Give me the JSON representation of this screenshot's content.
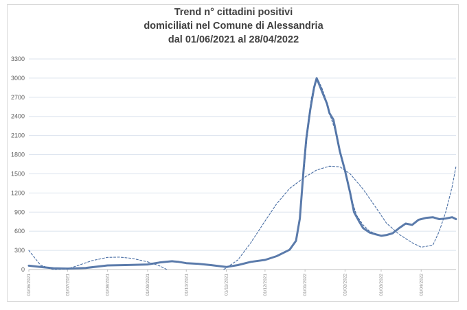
{
  "chart_data": {
    "type": "line",
    "title_lines": [
      "Trend n° cittadini positivi",
      "domiciliati nel Comune di Alessandria",
      "dal 01/06/2021 al 28/04/2022"
    ],
    "xlabel": "",
    "ylabel": "",
    "ylim": [
      0,
      3300
    ],
    "yticks": [
      "0",
      "300",
      "600",
      "900",
      "1200",
      "1500",
      "1800",
      "2100",
      "2400",
      "2700",
      "3000",
      "3300"
    ],
    "xlim": [
      "2021-06-01",
      "2022-04-28"
    ],
    "xticks": [
      "01/06/2021",
      "01/07/2021",
      "01/08/2021",
      "01/09/2021",
      "01/10/2021",
      "01/11/2021",
      "01/12/2021",
      "01/01/2022",
      "01/02/2022",
      "01/03/2022",
      "01/04/2022"
    ],
    "grid": true,
    "legend": "none",
    "colors": {
      "series": "#5b7bab",
      "trend": "#4a6fa5",
      "grid": "#dbe3ee",
      "axis": "#bfbfbf"
    },
    "series": [
      {
        "style": "solid",
        "x": [
          "2021-06-01",
          "2021-06-10",
          "2021-06-20",
          "2021-07-01",
          "2021-07-15",
          "2021-08-01",
          "2021-08-15",
          "2021-09-01",
          "2021-09-10",
          "2021-09-15",
          "2021-09-20",
          "2021-09-25",
          "2021-10-01",
          "2021-10-10",
          "2021-10-20",
          "2021-11-01",
          "2021-11-10",
          "2021-11-20",
          "2021-12-01",
          "2021-12-10",
          "2021-12-20",
          "2021-12-25",
          "2021-12-28",
          "2021-12-31",
          "2022-01-02",
          "2022-01-05",
          "2022-01-08",
          "2022-01-10",
          "2022-01-12",
          "2022-01-15",
          "2022-01-18",
          "2022-01-20",
          "2022-01-23",
          "2022-01-26",
          "2022-01-28",
          "2022-02-01",
          "2022-02-05",
          "2022-02-08",
          "2022-02-12",
          "2022-02-15",
          "2022-02-20",
          "2022-02-25",
          "2022-03-01",
          "2022-03-05",
          "2022-03-10",
          "2022-03-15",
          "2022-03-20",
          "2022-03-25",
          "2022-03-30",
          "2022-04-01",
          "2022-04-05",
          "2022-04-10",
          "2022-04-15",
          "2022-04-20",
          "2022-04-25",
          "2022-04-28"
        ],
        "y": [
          60,
          40,
          20,
          15,
          25,
          65,
          70,
          80,
          110,
          120,
          130,
          120,
          100,
          90,
          70,
          40,
          70,
          120,
          150,
          210,
          310,
          450,
          800,
          1600,
          2050,
          2500,
          2850,
          3000,
          2900,
          2750,
          2600,
          2450,
          2350,
          2050,
          1850,
          1550,
          1200,
          900,
          750,
          650,
          580,
          550,
          530,
          540,
          570,
          650,
          720,
          700,
          780,
          790,
          810,
          820,
          790,
          800,
          820,
          790
        ]
      },
      {
        "style": "dashed",
        "x": [
          "2021-06-01",
          "2021-06-10",
          "2021-06-20",
          "2021-07-01",
          "2021-07-10",
          "2021-07-20",
          "2021-08-01",
          "2021-08-10",
          "2021-08-20",
          "2021-09-01",
          "2021-09-10",
          "2021-09-16"
        ],
        "y": [
          300,
          70,
          0,
          10,
          70,
          140,
          190,
          195,
          175,
          120,
          60,
          0
        ]
      },
      {
        "style": "dashed",
        "x": [
          "2021-10-30",
          "2021-11-10",
          "2021-11-20",
          "2021-12-01",
          "2021-12-10",
          "2021-12-20",
          "2022-01-01",
          "2022-01-10",
          "2022-01-20",
          "2022-01-28",
          "2022-02-05",
          "2022-02-15",
          "2022-02-25",
          "2022-03-05",
          "2022-03-15",
          "2022-03-25",
          "2022-04-01",
          "2022-04-10",
          "2022-04-15",
          "2022-04-20",
          "2022-04-25",
          "2022-04-28"
        ],
        "y": [
          0,
          150,
          420,
          760,
          1030,
          1270,
          1450,
          1560,
          1620,
          1610,
          1500,
          1260,
          970,
          730,
          550,
          420,
          350,
          380,
          600,
          900,
          1300,
          1620
        ]
      },
      {
        "style": "dashed",
        "x": [
          "2021-12-31",
          "2022-01-03",
          "2022-01-06",
          "2022-01-09",
          "2022-01-11",
          "2022-01-14",
          "2022-01-17",
          "2022-01-20",
          "2022-01-24",
          "2022-01-28",
          "2022-02-02",
          "2022-02-06",
          "2022-02-10",
          "2022-02-15",
          "2022-02-20",
          "2022-02-26"
        ],
        "y": [
          1500,
          2200,
          2700,
          2950,
          2980,
          2850,
          2680,
          2450,
          2200,
          1850,
          1450,
          1100,
          850,
          700,
          600,
          550
        ]
      }
    ]
  }
}
